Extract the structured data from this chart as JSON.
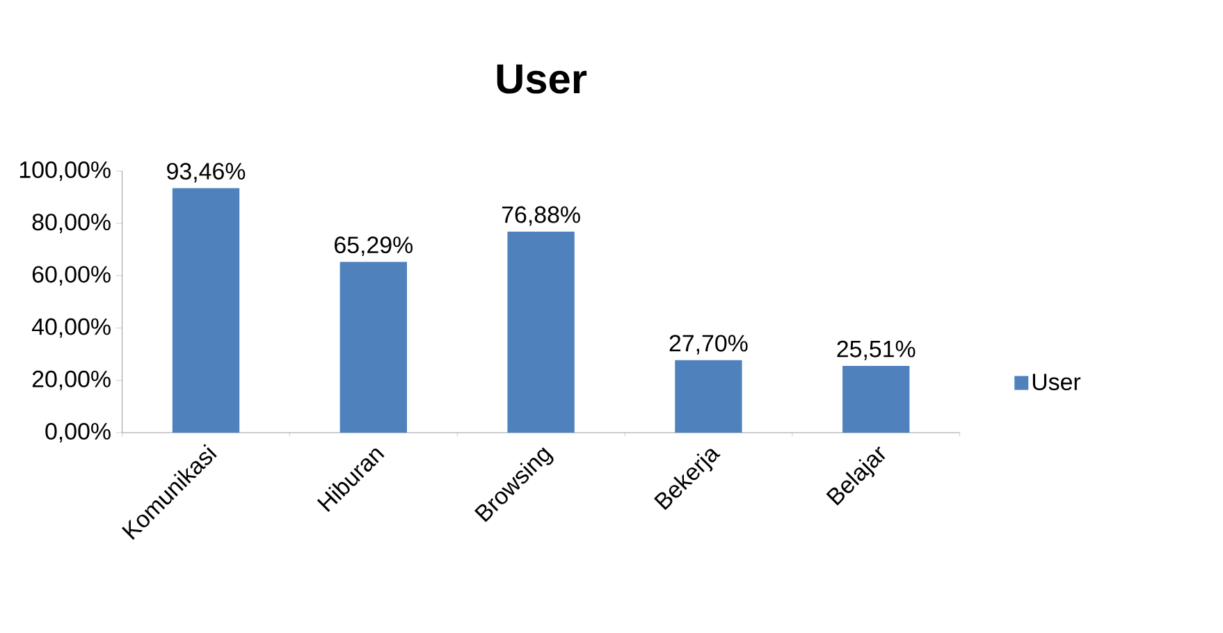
{
  "chart_data": {
    "type": "bar",
    "title": "User",
    "categories": [
      "Komunikasi",
      "Hiburan",
      "Browsing",
      "Bekerja",
      "Belajar"
    ],
    "series": [
      {
        "name": "User",
        "color": "#4f81bd",
        "values": [
          93.46,
          65.29,
          76.88,
          27.7,
          25.51
        ],
        "value_labels": [
          "93,46%",
          "65,29%",
          "76,88%",
          "27,70%",
          "25,51%"
        ]
      }
    ],
    "ylim": [
      0,
      100
    ],
    "yticks": [
      {
        "value": 0,
        "label": "0,00%"
      },
      {
        "value": 20,
        "label": "20,00%"
      },
      {
        "value": 40,
        "label": "40,00%"
      },
      {
        "value": 60,
        "label": "60,00%"
      },
      {
        "value": 80,
        "label": "80,00%"
      },
      {
        "value": 100,
        "label": "100,00%"
      }
    ],
    "legend": "right"
  }
}
